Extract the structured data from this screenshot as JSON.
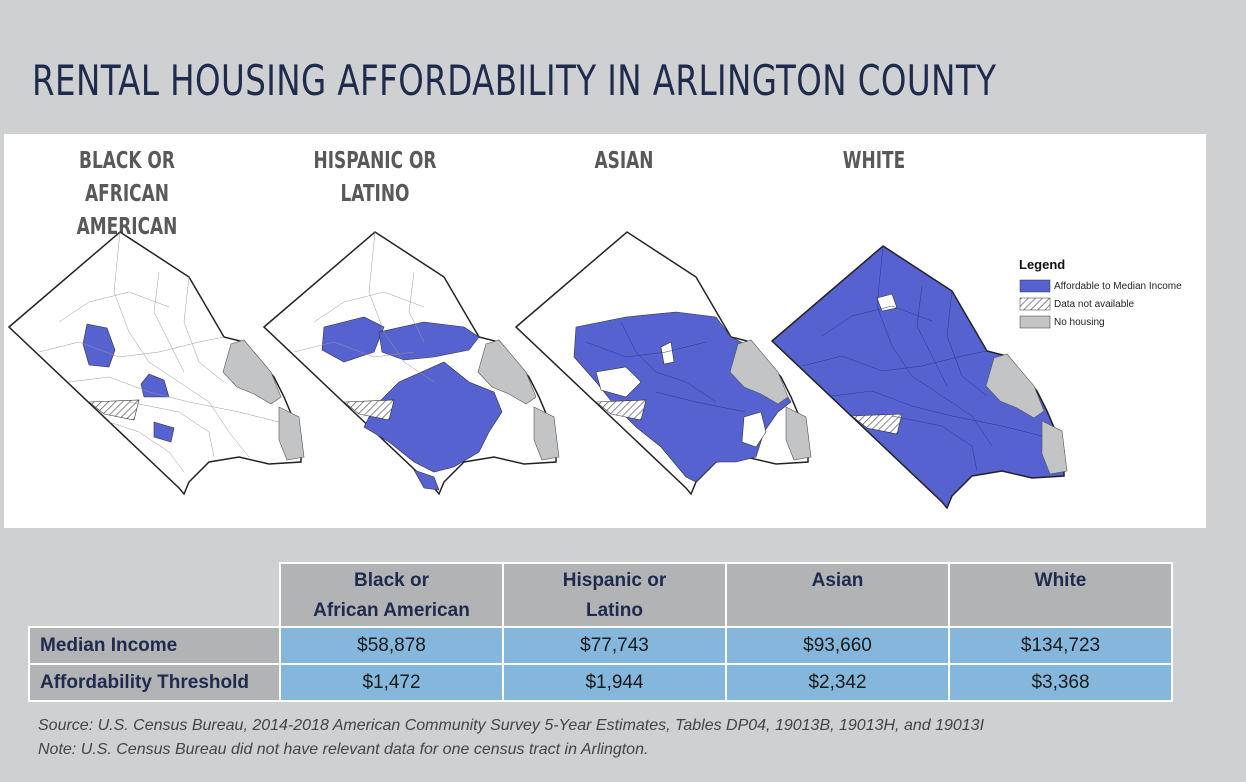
{
  "title": "RENTAL HOUSING AFFORDABILITY IN ARLINGTON COUNTY",
  "maps": [
    {
      "line1": "BLACK OR",
      "line2": "AFRICAN AMERICAN"
    },
    {
      "line1": "HISPANIC OR",
      "line2": "LATINO"
    },
    {
      "line1": "ASIAN",
      "line2": ""
    },
    {
      "line1": "WHITE",
      "line2": ""
    }
  ],
  "legend": {
    "title": "Legend",
    "items": [
      {
        "label": "Affordable to Median Income",
        "color": "#5562d0"
      },
      {
        "label": "Data not available",
        "color": "hatch"
      },
      {
        "label": "No housing",
        "color": "#c3c4c6"
      }
    ]
  },
  "table": {
    "columns": [
      {
        "line1": "Black or",
        "line2": "African American"
      },
      {
        "line1": "Hispanic or",
        "line2": "Latino"
      },
      {
        "line1": "Asian",
        "line2": ""
      },
      {
        "line1": "White",
        "line2": ""
      }
    ],
    "rows": [
      {
        "label": "Median Income",
        "values": [
          "$58,878",
          "$77,743",
          "$93,660",
          "$134,723"
        ]
      },
      {
        "label": "Affordability Threshold",
        "values": [
          "$1,472",
          "$1,944",
          "$2,342",
          "$3,368"
        ]
      }
    ]
  },
  "notes": {
    "source": "Source: U.S. Census Bureau, 2014-2018 American Community Survey 5-Year Estimates, Tables DP04, 19013B, 19013H, and 19013I",
    "note": "Note: U.S. Census Bureau did not have relevant data for one census tract in Arlington."
  },
  "colors": {
    "affordable": "#5562d0",
    "no_housing": "#c3c4c6",
    "title": "#1e2b4e",
    "header_bg": "#cfd0d2",
    "table_head": "#b2b3b5",
    "table_cell": "#85b7dc"
  }
}
